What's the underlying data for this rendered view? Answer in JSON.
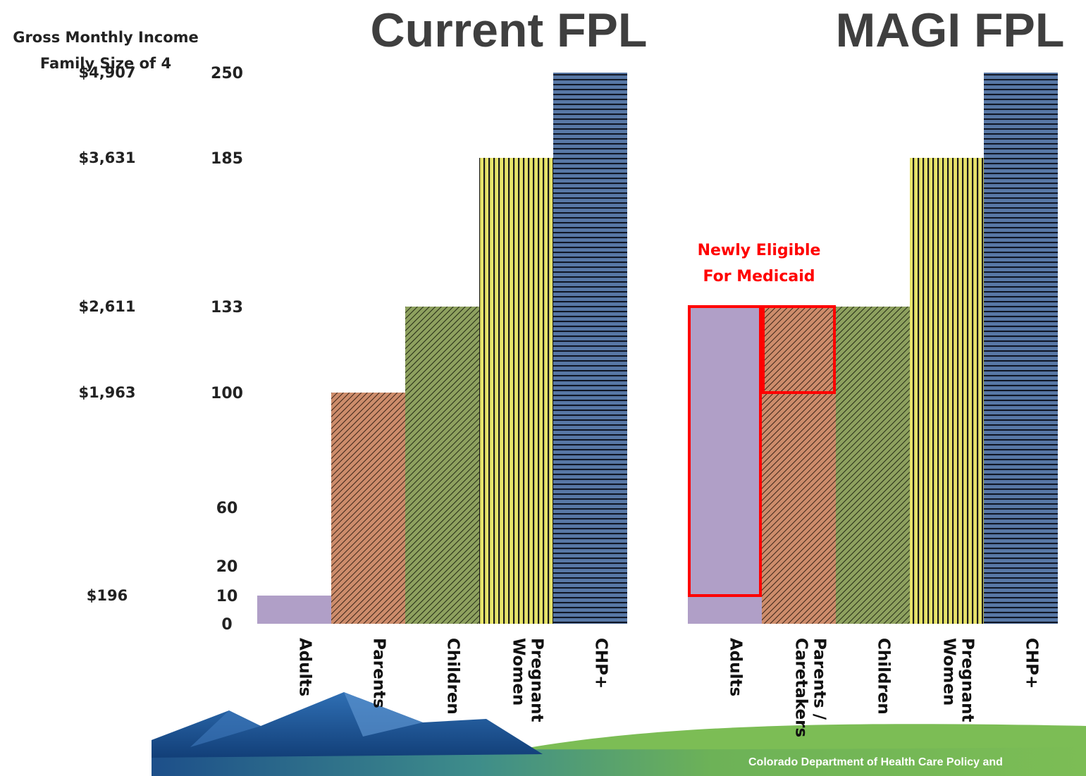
{
  "left_header": {
    "line1": "Gross Monthly Income",
    "line2": "Family Size of 4"
  },
  "footer_text": "Colorado Department of Health Care Policy and",
  "income_ticks": [
    {
      "fpl": 250,
      "label": "$4,907"
    },
    {
      "fpl": 185,
      "label": "$3,631"
    },
    {
      "fpl": 133,
      "label": "$2,611"
    },
    {
      "fpl": 100,
      "label": "$1,963"
    },
    {
      "fpl": 10,
      "label": "$196"
    }
  ],
  "colors": {
    "adults": "#b09fc7",
    "parents": "#cd8c6b",
    "children": "#7b8f52",
    "pregnant": "#e6e36a",
    "chp": "#4f6f9b",
    "highlight": "#ff0000",
    "heading": "#3f3f3f"
  },
  "chart_data": [
    {
      "type": "bar",
      "title": "Current FPL",
      "ylabel": "",
      "yticks": [
        0,
        10,
        20,
        60,
        100,
        133,
        185,
        250
      ],
      "series": [
        {
          "category": [
            "Adults"
          ],
          "value": 10,
          "pattern": "solid",
          "color_key": "adults"
        },
        {
          "category": [
            "Parents"
          ],
          "value": 100,
          "pattern": "diag",
          "color_key": "parents"
        },
        {
          "category": [
            "Children"
          ],
          "value": 133,
          "pattern": "diag",
          "color_key": "children"
        },
        {
          "category": [
            "Pregnant",
            "Women"
          ],
          "value": 185,
          "pattern": "vert",
          "color_key": "pregnant"
        },
        {
          "category": [
            "CHP+"
          ],
          "value": 250,
          "pattern": "horiz",
          "color_key": "chp"
        }
      ]
    },
    {
      "type": "bar",
      "title": "MAGI FPL",
      "ylabel": "",
      "series": [
        {
          "category": [
            "Adults"
          ],
          "value": 133,
          "newly_eligible_from": 10,
          "pattern": "solid",
          "color_key": "adults"
        },
        {
          "category": [
            "Parents /",
            "Caretakers"
          ],
          "value": 133,
          "newly_eligible_from": 100,
          "pattern": "diag",
          "color_key": "parents"
        },
        {
          "category": [
            "Children"
          ],
          "value": 133,
          "pattern": "diag",
          "color_key": "children"
        },
        {
          "category": [
            "Pregnant",
            "Women"
          ],
          "value": 185,
          "pattern": "vert",
          "color_key": "pregnant"
        },
        {
          "category": [
            "CHP+"
          ],
          "value": 250,
          "pattern": "horiz",
          "color_key": "chp"
        }
      ],
      "annotation": [
        "Newly Eligible",
        "For Medicaid"
      ]
    }
  ]
}
